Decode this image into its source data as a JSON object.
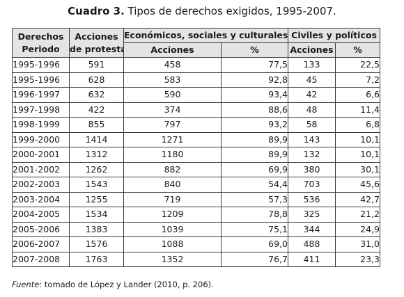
{
  "title": {
    "label": "Cuadro 3.",
    "text": "Tipos de derechos exigidos, 1995-2007."
  },
  "table": {
    "header_col1_line1": "Derechos",
    "header_col1_line2": "Periodo",
    "header_col2_line1": "Acciones",
    "header_col2_line2": "de protesta",
    "header_group_eco": "Económicos, sociales y culturales",
    "header_group_civ": "Civiles y políticos",
    "sub_acciones": "Acciones",
    "sub_pct": "%",
    "rows": [
      {
        "periodo": "1995-1996",
        "acciones": "591",
        "eco_acc": "458",
        "eco_pct": "77,5",
        "civ_acc": "133",
        "civ_pct": "22,5"
      },
      {
        "periodo": "1995-1996",
        "acciones": "628",
        "eco_acc": "583",
        "eco_pct": "92,8",
        "civ_acc": "45",
        "civ_pct": "7,2"
      },
      {
        "periodo": "1996-1997",
        "acciones": "632",
        "eco_acc": "590",
        "eco_pct": "93,4",
        "civ_acc": "42",
        "civ_pct": "6,6"
      },
      {
        "periodo": "1997-1998",
        "acciones": "422",
        "eco_acc": "374",
        "eco_pct": "88,6",
        "civ_acc": "48",
        "civ_pct": "11,4"
      },
      {
        "periodo": "1998-1999",
        "acciones": "855",
        "eco_acc": "797",
        "eco_pct": "93,2",
        "civ_acc": "58",
        "civ_pct": "6,8"
      },
      {
        "periodo": "1999-2000",
        "acciones": "1414",
        "eco_acc": "1271",
        "eco_pct": "89,9",
        "civ_acc": "143",
        "civ_pct": "10,1"
      },
      {
        "periodo": "2000-2001",
        "acciones": "1312",
        "eco_acc": "1180",
        "eco_pct": "89,9",
        "civ_acc": "132",
        "civ_pct": "10,1"
      },
      {
        "periodo": "2001-2002",
        "acciones": "1262",
        "eco_acc": "882",
        "eco_pct": "69,9",
        "civ_acc": "380",
        "civ_pct": "30,1"
      },
      {
        "periodo": "2002-2003",
        "acciones": "1543",
        "eco_acc": "840",
        "eco_pct": "54,4",
        "civ_acc": "703",
        "civ_pct": "45,6"
      },
      {
        "periodo": "2003-2004",
        "acciones": "1255",
        "eco_acc": "719",
        "eco_pct": "57,3",
        "civ_acc": "536",
        "civ_pct": "42,7"
      },
      {
        "periodo": "2004-2005",
        "acciones": "1534",
        "eco_acc": "1209",
        "eco_pct": "78,8",
        "civ_acc": "325",
        "civ_pct": "21,2"
      },
      {
        "periodo": "2005-2006",
        "acciones": "1383",
        "eco_acc": "1039",
        "eco_pct": "75,1",
        "civ_acc": "344",
        "civ_pct": "24,9"
      },
      {
        "periodo": "2006-2007",
        "acciones": "1576",
        "eco_acc": "1088",
        "eco_pct": "69,0",
        "civ_acc": "488",
        "civ_pct": "31,0"
      },
      {
        "periodo": "2007-2008",
        "acciones": "1763",
        "eco_acc": "1352",
        "eco_pct": "76,7",
        "civ_acc": "411",
        "civ_pct": "23,3"
      }
    ]
  },
  "source": {
    "label": "Fuente",
    "text": ": tomado de López y Lander (2010, p. 206)."
  }
}
